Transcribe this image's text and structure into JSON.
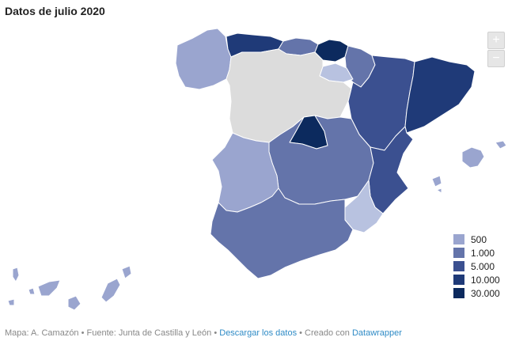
{
  "title": "Datos de julio 2020",
  "zoom": {
    "plus": "+",
    "minus": "−"
  },
  "map": {
    "colors": {
      "nodata": "#dcdcdc",
      "c500": "#9aa5cf",
      "c1000": "#6474aa",
      "c5000": "#3b5090",
      "c10000": "#1f3a78",
      "c30000": "#0c2a5e",
      "light": "#b8c2e0"
    }
  },
  "legend": [
    {
      "label": "500",
      "color": "#9aa5cf"
    },
    {
      "label": "1.000",
      "color": "#6474aa"
    },
    {
      "label": "5.000",
      "color": "#3b5090"
    },
    {
      "label": "10.000",
      "color": "#1f3a78"
    },
    {
      "label": "30.000",
      "color": "#0c2a5e"
    }
  ],
  "footer": {
    "prefix": "Mapa: A. Camazón • Fuente: Junta de Castilla y León • ",
    "download_link": "Descargar los datos",
    "middle": " • Creado con ",
    "datawrapper_link": "Datawrapper"
  }
}
